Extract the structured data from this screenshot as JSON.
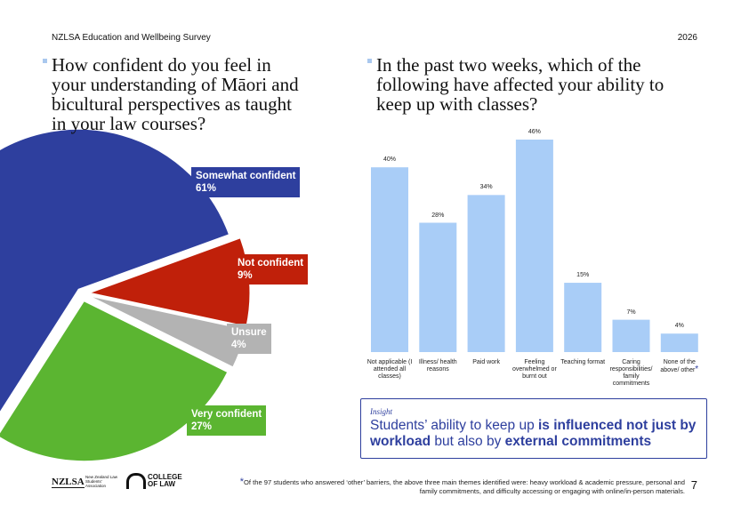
{
  "header": {
    "title": "NZLSA Education and Wellbeing Survey",
    "year": "2026"
  },
  "chart_data": [
    {
      "type": "pie",
      "title": "How confident do you feel in your understanding of Māori and bicultural perspectives as taught in your law courses?",
      "categories": [
        "Somewhat confident",
        "Not confident",
        "Unsure",
        "Very confident"
      ],
      "values": [
        61,
        9,
        4,
        27
      ],
      "value_labels": [
        "61%",
        "9%",
        "4%",
        "27%"
      ],
      "colors": [
        "#2e3f9e",
        "#c0200a",
        "#b3b3b3",
        "#5bb531"
      ]
    },
    {
      "type": "bar",
      "title": "In the past two weeks, which of the following have affected your ability to keep up with classes?",
      "categories": [
        "Not applicable (I attended all classes)",
        "Illness/ health reasons",
        "Paid work",
        "Feeling overwhelmed or burnt out",
        "Teaching format",
        "Caring responsibilities/ family commitments",
        "None of the above/ other"
      ],
      "footnote_marker": "*",
      "values": [
        40,
        28,
        34,
        46,
        15,
        7,
        4
      ],
      "value_labels": [
        "40%",
        "28%",
        "34%",
        "46%",
        "15%",
        "7%",
        "4%"
      ],
      "color": "#a9cdf7"
    }
  ],
  "insight": {
    "label": "Insight",
    "text": [
      "Students’ ability to keep up ",
      "is influenced not just by workload",
      " but also by ",
      "external commitments"
    ]
  },
  "footnote": {
    "marker": "*",
    "text": "Of the 97 students who answered ‘other’ barriers, the above three main themes identified were: heavy workload & academic pressure, personal and family commitments, and difficulty accessing or engaging with online/in-person materials."
  },
  "page_number": "7",
  "logos": {
    "nzlsa": "NZLSA",
    "nzlsa_name": "New Zealand Law Students' Association",
    "col": "COLLEGE OF LAW"
  }
}
